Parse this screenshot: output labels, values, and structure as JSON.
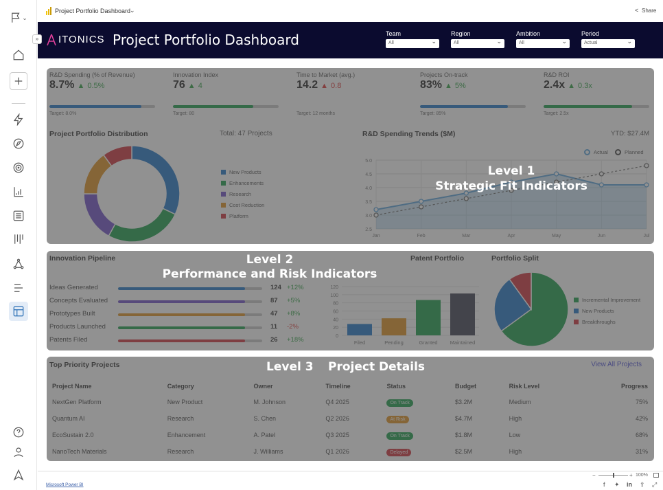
{
  "topbar": {
    "title": "Project Portfolio Dashboard",
    "share": "Share"
  },
  "header": {
    "brand": "ITONICS",
    "title": "Project Portfolio Dashboard",
    "filters": [
      {
        "label": "Team",
        "value": "All"
      },
      {
        "label": "Region",
        "value": "All"
      },
      {
        "label": "Ambition",
        "value": "All"
      },
      {
        "label": "Period",
        "value": "Actual"
      }
    ]
  },
  "sidebar": {
    "icons": [
      "flag-icon",
      "home-icon",
      "plus-icon",
      "lightning-icon",
      "send-icon",
      "target-icon",
      "chart-icon",
      "list-icon",
      "kanban-icon",
      "nodes-icon",
      "align-icon",
      "layout-icon",
      "help-icon",
      "user-icon",
      "logo-icon"
    ]
  },
  "kpis": [
    {
      "label": "R&D Spending (% of Revenue)",
      "value": "8.7%",
      "delta": "0.5%",
      "dir": "up",
      "color": "#2ea043",
      "target": "Target: 8.0%",
      "progress": 87,
      "bar": "#1f77c9"
    },
    {
      "label": "Innovation Index",
      "value": "76",
      "delta": "4",
      "dir": "up",
      "color": "#2ea043",
      "target": "Target: 80",
      "progress": 76,
      "bar": "#1a9e4a"
    },
    {
      "label": "Time to Market (avg.)",
      "value": "14.2",
      "delta": "0.8",
      "dir": "up",
      "color": "#d33",
      "target": "Target: 12 months",
      "progress": null,
      "bar": ""
    },
    {
      "label": "Projects On-track",
      "value": "83%",
      "delta": "5%",
      "dir": "up",
      "color": "#2ea043",
      "target": "Target: 85%",
      "progress": 83,
      "bar": "#1f77c9"
    },
    {
      "label": "R&D ROI",
      "value": "2.4x",
      "delta": "0.3x",
      "dir": "up",
      "color": "#2ea043",
      "target": "Target: 2.5x",
      "progress": 84,
      "bar": "#1a9e4a"
    }
  ],
  "levels": {
    "l1": [
      "Level 1",
      "Strategic Fit Indicators"
    ],
    "l2": [
      "Level 2",
      "Performance and Risk Indicators"
    ],
    "l3": [
      "Level 3",
      "Project Details"
    ]
  },
  "chart_data": [
    {
      "type": "pie",
      "title": "Project Portfolio Distribution",
      "subtitle": "Total: 47 Projects",
      "donut": true,
      "categories": [
        "New Products",
        "Enhancements",
        "Research",
        "Cost Reduction",
        "Platform"
      ],
      "values": [
        32,
        26,
        17,
        15,
        10
      ],
      "colors": [
        "#1f77c9",
        "#1a9e4a",
        "#6f4fc9",
        "#e0921e",
        "#d0303a"
      ]
    },
    {
      "type": "line",
      "title": "R&D Spending Trends ($M)",
      "subtitle": "YTD: $27.4M",
      "categories": [
        "Jan",
        "Feb",
        "Mar",
        "Apr",
        "May",
        "Jun",
        "Jul"
      ],
      "ylim": [
        2.5,
        5.0
      ],
      "yticks": [
        "2.5",
        "3.0",
        "3.5",
        "4.0",
        "4.5",
        "5.0"
      ],
      "grid": true,
      "legend": "top-right",
      "series": [
        {
          "name": "Actual",
          "values": [
            3.2,
            3.5,
            3.8,
            4.2,
            4.5,
            4.1,
            4.1
          ],
          "color": "#5aa4dc"
        },
        {
          "name": "Planned",
          "values": [
            3.0,
            3.3,
            3.6,
            3.9,
            4.2,
            4.5,
            4.8
          ],
          "color": "#666666"
        }
      ]
    },
    {
      "type": "bar",
      "title": "Innovation Pipeline",
      "categories": [
        "Ideas Generated",
        "Concepts Evaluated",
        "Prototypes Built",
        "Products Launched",
        "Patents Filed"
      ],
      "values": [
        "124",
        "87",
        "47",
        "11",
        "26"
      ],
      "changes": [
        "+12%",
        "+5%",
        "+8%",
        "-2%",
        "+18%"
      ],
      "change_colors": [
        "#2ea043",
        "#2ea043",
        "#2ea043",
        "#d33",
        "#2ea043"
      ],
      "fill": [
        88,
        88,
        88,
        88,
        88
      ],
      "colors": [
        "#1f77c9",
        "#6f4fc9",
        "#e0921e",
        "#1a9e4a",
        "#d0303a"
      ]
    },
    {
      "type": "bar",
      "title": "Patent Portfolio",
      "categories": [
        "Filed",
        "Pending",
        "Granted",
        "Maintained"
      ],
      "values": [
        28,
        42,
        87,
        103
      ],
      "ylim": [
        0,
        120
      ],
      "yticks": [
        "0",
        "20",
        "40",
        "60",
        "80",
        "100",
        "120"
      ],
      "colors": [
        "#1f77c9",
        "#e0921e",
        "#1a9e4a",
        "#3c4052"
      ],
      "grid": true
    },
    {
      "type": "pie",
      "title": "Portfolio Split",
      "categories": [
        "Incremental Improvement",
        "New Products",
        "Breakthroughs"
      ],
      "values": [
        65,
        25,
        10
      ],
      "colors": [
        "#1a9e4a",
        "#1f77c9",
        "#d0303a"
      ],
      "legend": "right"
    }
  ],
  "projects": {
    "title": "Top Priority Projects",
    "view_all": "View All Projects",
    "columns": [
      "Project Name",
      "Category",
      "Owner",
      "Timeline",
      "Status",
      "Budget",
      "Risk Level",
      "Progress"
    ],
    "rows": [
      [
        "NextGen Platform",
        "New Product",
        "M. Johnson",
        "Q4 2025",
        "On Track",
        "$3.2M",
        "Medium",
        "75%"
      ],
      [
        "Quantum AI",
        "Research",
        "S. Chen",
        "Q2 2026",
        "At Risk",
        "$4.7M",
        "High",
        "42%"
      ],
      [
        "EcoSustain 2.0",
        "Enhancement",
        "A. Patel",
        "Q3 2025",
        "On Track",
        "$1.8M",
        "Low",
        "68%"
      ],
      [
        "NanoTech Materials",
        "Research",
        "J. Williams",
        "Q1 2026",
        "Delayed",
        "$2.5M",
        "High",
        "31%"
      ]
    ],
    "status_colors": {
      "On Track": "#1a9e4a",
      "At Risk": "#e0921e",
      "Delayed": "#d0303a"
    }
  },
  "footer": {
    "link": "Microsoft Power BI",
    "zoom": "100%"
  }
}
